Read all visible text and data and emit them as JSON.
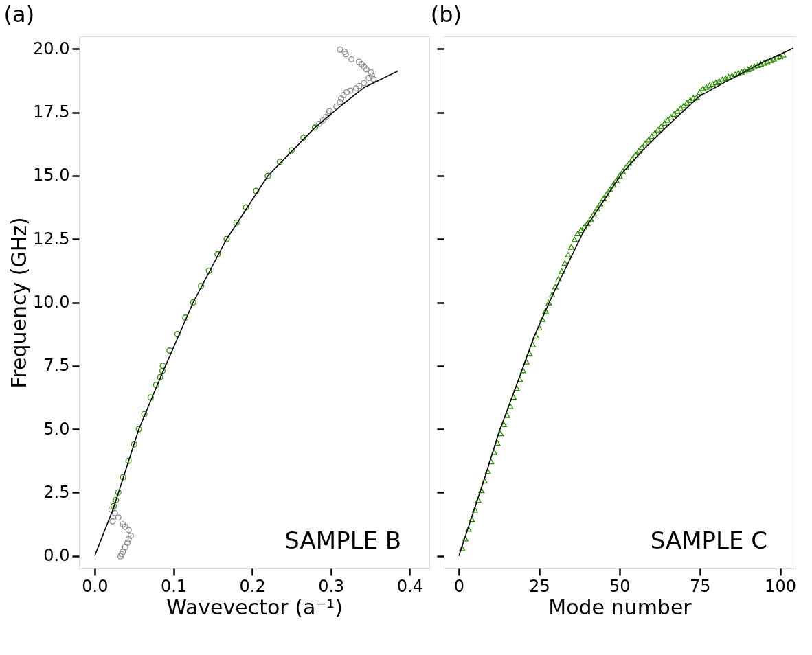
{
  "chart_data": [
    {
      "type": "scatter",
      "title": "(a)",
      "xlabel": "Wavevector (a⁻¹)",
      "ylabel": "Frequency (GHz)",
      "xlim": [
        -0.02,
        0.425
      ],
      "ylim": [
        -0.5,
        20.5
      ],
      "xticks": [
        {
          "value": 0,
          "label": "0.0"
        },
        0.1,
        0.2,
        0.3,
        0.4
      ],
      "yticks": [
        {
          "value": 0,
          "label": "0.0"
        },
        2.5,
        {
          "value": 5,
          "label": "5.0"
        },
        7.5,
        {
          "value": 10,
          "label": "10.0"
        },
        12.5,
        {
          "value": 15,
          "label": "15.0"
        },
        17.5,
        {
          "value": 20,
          "label": "20.0"
        }
      ],
      "grid": false,
      "annotations": [
        "SAMPLE B"
      ],
      "series": [
        {
          "marker": "circle",
          "color": "#888888",
          "x": [
            0.0212,
            0.0255,
            0.0226,
            0.03,
            0.0357,
            0.0386,
            0.043,
            0.0458,
            0.043,
            0.0415,
            0.0386,
            0.0357,
            0.0342,
            0.0328,
            0.285,
            0.29,
            0.294,
            0.297,
            0.298,
            0.307,
            0.3115,
            0.313,
            0.316,
            0.32,
            0.3246,
            0.332,
            0.336,
            0.342,
            0.348,
            0.354,
            0.352,
            0.351,
            0.345,
            0.342,
            0.339,
            0.3356,
            0.326,
            0.3188,
            0.3173,
            0.3115
          ],
          "values": [
            1.83,
            1.69,
            1.36,
            1.51,
            1.24,
            1.15,
            1.02,
            0.79,
            0.66,
            0.52,
            0.34,
            0.16,
            0.07,
            -0.02,
            17.05,
            17.19,
            17.32,
            17.46,
            17.55,
            17.73,
            17.91,
            18.05,
            18.18,
            18.3,
            18.36,
            18.45,
            18.54,
            18.66,
            18.86,
            18.81,
            18.95,
            19.08,
            19.2,
            19.31,
            19.4,
            19.5,
            19.59,
            19.8,
            19.89,
            19.98
          ]
        },
        {
          "marker": "circle",
          "color": "#2b8a00",
          "x": [
            0.024,
            0.027,
            0.03,
            0.036,
            0.043,
            0.05,
            0.056,
            0.063,
            0.071,
            0.078,
            0.083,
            0.086,
            0.0865,
            0.095,
            0.105,
            0.115,
            0.125,
            0.135,
            0.145,
            0.156,
            0.1675,
            0.18,
            0.192,
            0.205,
            0.22,
            0.235,
            0.25,
            0.265,
            0.2796
          ],
          "values": [
            1.96,
            2.2,
            2.5,
            3.1,
            3.75,
            4.4,
            5.0,
            5.6,
            6.25,
            6.75,
            7.05,
            7.3,
            7.5,
            8.1,
            8.75,
            9.4,
            10.0,
            10.65,
            11.25,
            11.9,
            12.5,
            13.15,
            13.75,
            14.4,
            15.0,
            15.55,
            16.0,
            16.5,
            16.9
          ]
        },
        {
          "type": "line",
          "marker": "none",
          "line_style": "solid",
          "color": "#000000",
          "x": [
            0,
            0.024,
            0.056,
            0.085,
            0.125,
            0.1675,
            0.22,
            0.2796,
            0.313,
            0.342,
            0.385
          ],
          "values": [
            0,
            1.9,
            5.0,
            7.15,
            10.0,
            12.5,
            15.0,
            16.9,
            17.77,
            18.48,
            19.13
          ]
        }
      ]
    },
    {
      "type": "scatter",
      "title": "(b)",
      "xlabel": "Mode number",
      "xlim": [
        -4.7,
        104.8
      ],
      "ylim": [
        -0.5,
        20.5
      ],
      "tick_labels": "x",
      "xticks": [
        0,
        25,
        50,
        75,
        100
      ],
      "yticks": [
        {
          "value": 0,
          "label": null
        },
        {
          "value": 2.5,
          "label": null
        },
        {
          "value": 5,
          "label": null
        },
        {
          "value": 7.5,
          "label": null
        },
        {
          "value": 10,
          "label": null
        },
        {
          "value": 12.5,
          "label": null
        },
        {
          "value": 15,
          "label": null
        },
        {
          "value": 17.5,
          "label": null
        },
        {
          "value": 20,
          "label": null
        }
      ],
      "grid": false,
      "annotations": [
        "SAMPLE C"
      ],
      "series": [
        {
          "marker": "triangle",
          "color": "#2b8a00",
          "x": [
            1,
            2,
            3,
            4,
            5,
            6,
            7,
            8,
            9,
            10,
            11,
            12,
            13,
            14,
            15,
            16,
            17,
            18,
            19,
            20,
            21,
            22,
            23,
            24,
            25,
            26,
            27,
            28,
            29,
            30,
            31,
            32,
            33,
            34,
            35,
            36,
            37,
            38,
            39,
            40,
            41,
            42,
            43,
            44,
            45,
            46,
            47,
            48,
            49,
            50,
            51,
            52,
            53,
            54,
            55,
            56,
            57,
            58,
            59,
            60,
            61,
            62,
            63,
            64,
            65,
            66,
            67,
            68,
            69,
            70,
            71,
            72,
            73,
            74,
            75,
            76,
            77,
            78,
            79,
            80,
            81,
            82,
            83,
            84,
            85,
            86,
            87,
            88,
            89,
            90,
            91,
            92,
            93,
            94,
            95,
            96,
            97,
            98,
            99,
            100,
            101
          ],
          "values": [
            0.3,
            0.68,
            1.06,
            1.44,
            1.82,
            2.2,
            2.58,
            2.96,
            3.34,
            3.72,
            4.09,
            4.46,
            4.83,
            5.19,
            5.55,
            5.91,
            6.27,
            6.62,
            6.97,
            7.32,
            7.66,
            8.0,
            8.34,
            8.68,
            9.01,
            9.34,
            9.67,
            9.99,
            10.31,
            10.62,
            10.93,
            11.24,
            11.56,
            11.88,
            12.19,
            12.49,
            12.72,
            12.85,
            12.98,
            13.12,
            13.3,
            13.5,
            13.7,
            13.9,
            14.1,
            14.28,
            14.46,
            14.64,
            14.82,
            15.0,
            15.17,
            15.34,
            15.51,
            15.67,
            15.83,
            15.98,
            16.13,
            16.28,
            16.42,
            16.56,
            16.69,
            16.82,
            16.95,
            17.08,
            17.2,
            17.32,
            17.44,
            17.55,
            17.66,
            17.77,
            17.88,
            17.98,
            18.07,
            18.1,
            18.3,
            18.45,
            18.5,
            18.56,
            18.62,
            18.68,
            18.74,
            18.8,
            18.85,
            18.9,
            18.95,
            19.0,
            19.05,
            19.1,
            19.15,
            19.2,
            19.26,
            19.31,
            19.36,
            19.41,
            19.46,
            19.51,
            19.56,
            19.61,
            19.66,
            19.71,
            19.78
          ]
        },
        {
          "type": "line",
          "marker": "none",
          "line_style": "solid",
          "color": "#000000",
          "x": [
            0,
            7.85,
            12.5,
            17.8,
            23.5,
            29.2,
            39.2,
            50.6,
            57.7,
            64.9,
            74.9,
            82.7,
            93.4,
            104.1
          ],
          "values": [
            0,
            3.0,
            4.89,
            6.69,
            8.68,
            10.3,
            12.9,
            15.07,
            16.07,
            16.96,
            18.14,
            18.68,
            19.4,
            20.03
          ]
        }
      ]
    }
  ]
}
